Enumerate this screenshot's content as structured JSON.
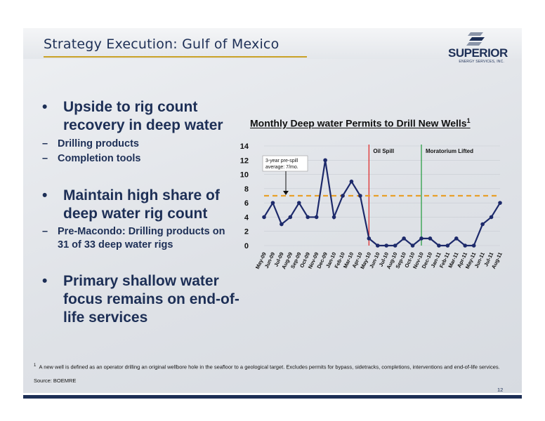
{
  "header": {
    "title": "Strategy Execution: Gulf of Mexico"
  },
  "logo": {
    "name": "SUPERIOR",
    "subtitle": "ENERGY SERVICES, INC."
  },
  "bullets": [
    {
      "text": "Upside to rig count recovery in deep water",
      "subs": [
        "Drilling products",
        "Completion tools"
      ]
    },
    {
      "text": "Maintain high share of deep water rig count",
      "subs": [
        "Pre-Macondo: Drilling products on 31 of 33 deep water rigs"
      ]
    },
    {
      "text": "Primary shallow water focus remains on end-of-life services",
      "subs": []
    }
  ],
  "chart_data": {
    "type": "line",
    "title": "Monthly Deep water Permits to Drill New Wells",
    "title_superscript": "1",
    "categories": [
      "May-09",
      "Jun-09",
      "Jul-09",
      "Aug-09",
      "Sep-09",
      "Oct-09",
      "Nov-09",
      "Dec-09",
      "Jan-10",
      "Feb-10",
      "Mar-10",
      "Apr-10",
      "May-10",
      "Jun-10",
      "Jul-10",
      "Aug-10",
      "Sep-10",
      "Oct-10",
      "Nov-10",
      "Dec-10",
      "Jan-11",
      "Feb-11",
      "Mar-11",
      "Apr-11",
      "May-11",
      "Jun-11",
      "Jul-11",
      "Aug-11"
    ],
    "values": [
      4,
      6,
      3,
      4,
      6,
      4,
      4,
      12,
      4,
      7,
      9,
      7,
      1,
      0,
      0,
      0,
      1,
      0,
      1,
      1,
      0,
      0,
      1,
      0,
      0,
      3,
      4,
      6
    ],
    "ylim": [
      0,
      14
    ],
    "yticks": [
      0,
      2,
      4,
      6,
      8,
      10,
      12,
      14
    ],
    "grid": "horizontal",
    "average_line": {
      "value": 7,
      "label_line1": "3-year pre-spill",
      "label_line2": "average: 7/mo.",
      "color": "#e8a02a"
    },
    "events": [
      {
        "at": "May-10",
        "label": "Oil Spill",
        "color": "#e02020"
      },
      {
        "at": "Nov-10",
        "label": "Moratorium Lifted",
        "color": "#1e9a3a"
      }
    ],
    "line_color": "#1d2a6b"
  },
  "footnote": {
    "marker": "1",
    "text": "A new well is defined as an operator drilling an original wellbore hole in the seafloor to a geological target. Excludes permits for bypass, sidetracks, completions, interventions and end-of-life services."
  },
  "source": "Source: BOEMRE",
  "page_number": "12"
}
